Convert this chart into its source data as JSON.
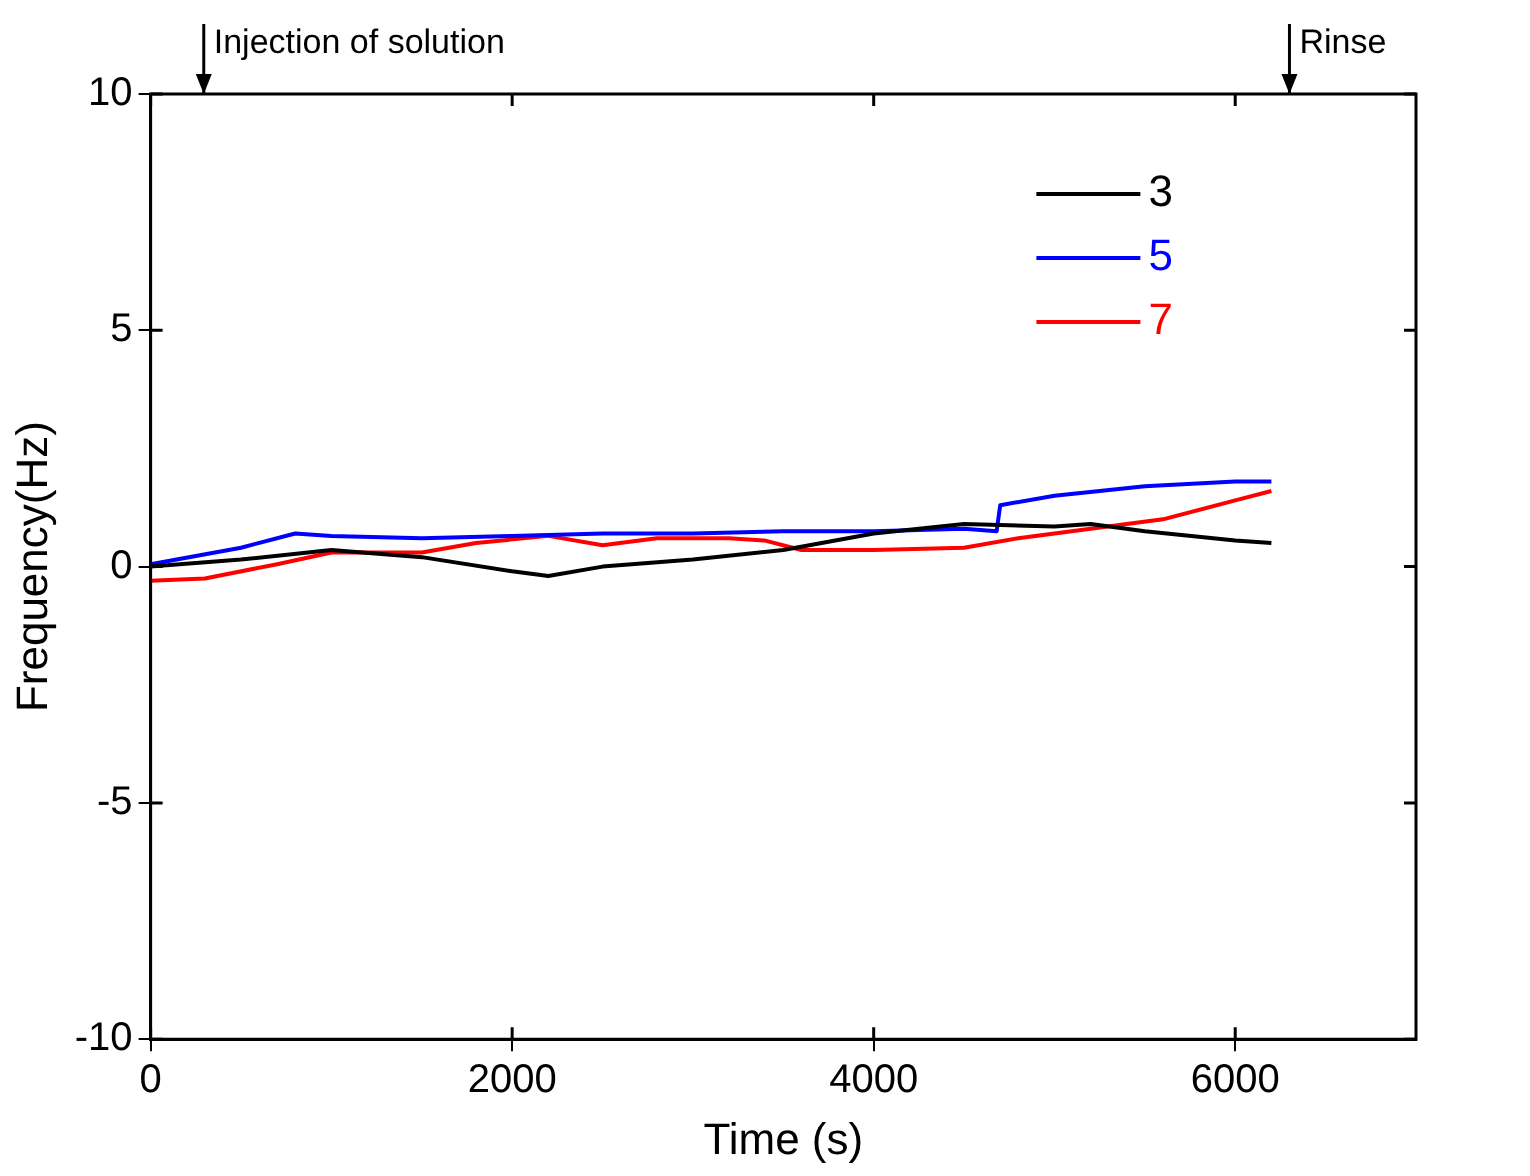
{
  "chart_data": {
    "type": "line",
    "xlabel": "Time (s)",
    "ylabel": "Frequency(Hz)",
    "xlim": [
      0,
      7000
    ],
    "xticks": [
      0,
      2000,
      4000,
      6000
    ],
    "ylim": [
      -10,
      10
    ],
    "yticks": [
      -10,
      -5,
      0,
      5,
      10
    ],
    "grid": false,
    "legend": "top right",
    "marker": "none",
    "line_style": "solid",
    "annotations": [
      "Injection of solution",
      "Rinse"
    ],
    "series": [
      {
        "name": "3",
        "color": "#000000",
        "x": [
          0,
          500,
          1000,
          1500,
          2000,
          2200,
          2500,
          3000,
          3500,
          4000,
          4500,
          5000,
          5200,
          5500,
          6000,
          6200
        ],
        "values": [
          0.0,
          0.15,
          0.35,
          0.2,
          -0.1,
          -0.2,
          0.0,
          0.15,
          0.35,
          0.7,
          0.9,
          0.85,
          0.9,
          0.75,
          0.55,
          0.5
        ]
      },
      {
        "name": "5",
        "color": "#0000ff",
        "x": [
          0,
          500,
          800,
          1000,
          1500,
          2000,
          2500,
          3000,
          3500,
          4000,
          4500,
          4680,
          4700,
          5000,
          5500,
          6000,
          6200
        ],
        "values": [
          0.05,
          0.4,
          0.7,
          0.65,
          0.6,
          0.65,
          0.7,
          0.7,
          0.75,
          0.75,
          0.8,
          0.75,
          1.3,
          1.5,
          1.7,
          1.8,
          1.8
        ]
      },
      {
        "name": "7",
        "color": "#ff0000",
        "x": [
          0,
          300,
          700,
          1000,
          1500,
          1800,
          2200,
          2500,
          2800,
          3200,
          3400,
          3600,
          4000,
          4500,
          4800,
          5200,
          5600,
          6000,
          6200
        ],
        "values": [
          -0.3,
          -0.25,
          0.05,
          0.3,
          0.3,
          0.5,
          0.65,
          0.45,
          0.6,
          0.6,
          0.55,
          0.35,
          0.35,
          0.4,
          0.6,
          0.8,
          1.0,
          1.4,
          1.6
        ]
      }
    ]
  }
}
